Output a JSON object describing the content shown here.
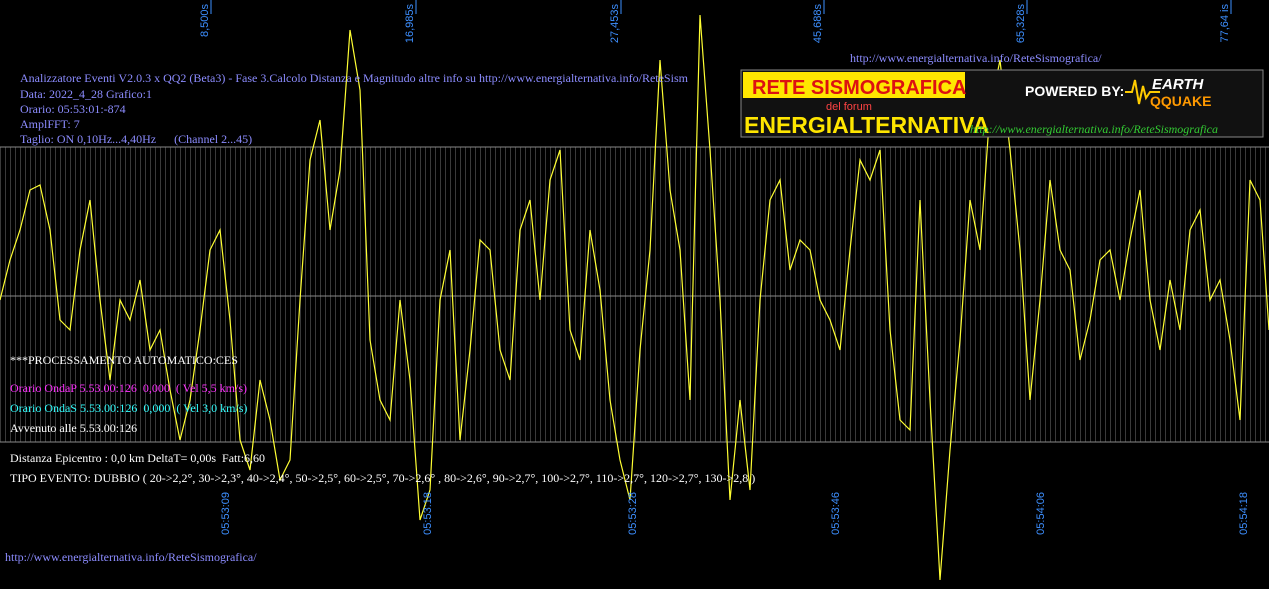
{
  "top_times": [
    "8,500s",
    "16,985s",
    "27,453s",
    "45,688s",
    "65,328s",
    "77,64 is"
  ],
  "bottom_times": [
    "05:53:09",
    "05:53:18",
    "05:53:28",
    "05:53:46",
    "05:54:06",
    "05:54:18"
  ],
  "header_lines": [
    "Analizzatore Eventi V2.0.3 x QQ2 (Beta3) - Fase 3.Calcolo Distanza e Magnitudo altre info su http://www.energialternativa.info/ReteSism",
    "Data: 2022_4_28 Grafico:1",
    "Orario: 05:53:01:-874",
    "AmplFFT: 7",
    "Taglio: ON 0,10Hz...4,40Hz      (Channel 2...45)"
  ],
  "top_url": "http://www.energialternativa.info/ReteSismografica/",
  "logo": {
    "title": "RETE SISMOGRAFICA",
    "subtitle": "del forum",
    "brand": "ENERGIALTERNATIVA",
    "powered": "POWERED BY:",
    "earth": "EARTH",
    "quake": "QQUAKE",
    "url": "http://www.energialternativa.info/ReteSismografica"
  },
  "processing": {
    "header": "***PROCESSAMENTO AUTOMATICO:CES",
    "onda_p": "Orario OndaP 5.53.00:126  0,000  ( Vel 5,5 km/s)",
    "onda_s": "Orario OndaS 5.53.00:126  0,000  ( Vel 3,0 km/s)",
    "avvenuto": "Avvenuto alle 5.53.00:126",
    "distanza": "Distanza Epicentro : 0,0 km DeltaT= 0,00s  Fatt:6,60",
    "tipo": "TIPO EVENTO: DUBBIO ( 20->2,2°, 30->2,3°, 40->2,4°, 50->2,5°, 60->2,5°, 70->2,6° , 80->2,6°, 90->2,7°, 100->2,7°, 110->2,7°, 120->2,7°, 130->2,8 )"
  },
  "bottom_url": "http://www.energialternativa.info/ReteSismografica/"
}
